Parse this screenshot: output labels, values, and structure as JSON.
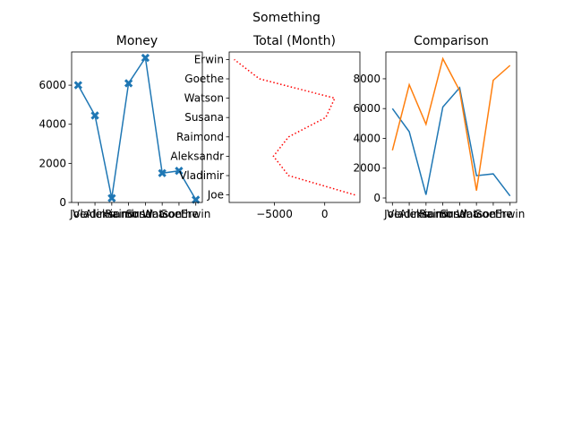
{
  "suptitle": "Something",
  "chart_data": [
    {
      "type": "line",
      "title": "Money",
      "categories": [
        "Joe",
        "Vladimir",
        "Aleksandr",
        "Raimond",
        "Susana",
        "Watson",
        "Goethe",
        "Erwin"
      ],
      "series": [
        {
          "values": [
            6000,
            4450,
            220,
            6100,
            7400,
            1500,
            1620,
            140
          ],
          "color": "#1f77b4",
          "marker": "x"
        }
      ],
      "ylim": [
        0,
        7700
      ],
      "yticks": [
        0,
        2000,
        4000,
        6000
      ],
      "xlabel": "",
      "ylabel": ""
    },
    {
      "type": "line",
      "title": "Total (Month)",
      "orientation": "horizontal",
      "categories": [
        "Joe",
        "Vladimir",
        "Aleksandr",
        "Raimond",
        "Susana",
        "Watson",
        "Goethe",
        "Erwin"
      ],
      "series": [
        {
          "values": [
            3000,
            -3600,
            -5100,
            -3600,
            100,
            1000,
            -6500,
            -9000
          ],
          "color": "#ff0000",
          "style": "dotted"
        }
      ],
      "xlim": [
        -9500,
        3500
      ],
      "xticks": [
        -5000,
        0
      ],
      "xlabel": "",
      "ylabel": ""
    },
    {
      "type": "line",
      "title": "Comparison",
      "categories": [
        "Joe",
        "Vladimir",
        "Aleksandr",
        "Raimond",
        "Susana",
        "Watson",
        "Goethe",
        "Erwin"
      ],
      "series": [
        {
          "values": [
            6000,
            4450,
            220,
            6100,
            7400,
            1500,
            1620,
            140
          ],
          "color": "#1f77b4"
        },
        {
          "values": [
            3200,
            7600,
            4950,
            9350,
            7200,
            500,
            7900,
            8900
          ],
          "color": "#ff7f0e"
        }
      ],
      "ylim": [
        -300,
        9800
      ],
      "yticks": [
        0,
        2000,
        4000,
        6000,
        8000
      ],
      "xlabel": "",
      "ylabel": ""
    }
  ]
}
